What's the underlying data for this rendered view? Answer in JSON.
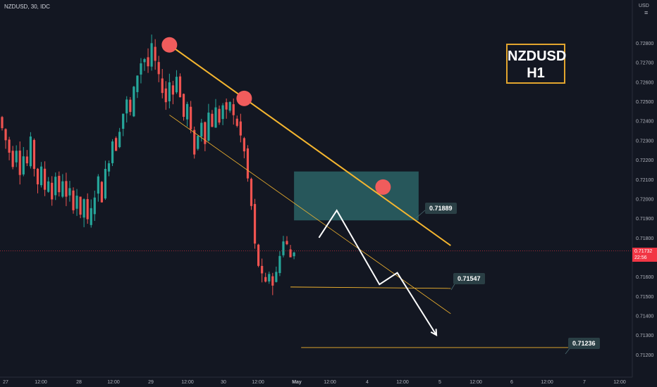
{
  "header": {
    "symbol_line": "NZDUSD, 30, IDC",
    "currency": "USD"
  },
  "ticker_box": {
    "line1": "NZDUSD",
    "line2": "H1"
  },
  "current_price": {
    "value": "0.71732",
    "countdown": "22:56"
  },
  "labels": {
    "zone_top": "0.71889",
    "support": "0.71547",
    "target": "0.71236"
  },
  "colors": {
    "background": "#131722",
    "bull": "#26a69a",
    "bear": "#ef5350",
    "trendline": "#f5b62f",
    "zone": "#2f6d6f",
    "touch_marker": "#f05c5c",
    "arrow": "#ffffff",
    "current_price": "#f23645"
  },
  "chart_data": {
    "type": "candlestick",
    "ylim": [
      0.712,
      0.729
    ],
    "y_ticks": [
      "0.72800",
      "0.72700",
      "0.72600",
      "0.72500",
      "0.72400",
      "0.72300",
      "0.72200",
      "0.72100",
      "0.72000",
      "0.71900",
      "0.71800",
      "0.71600",
      "0.71500",
      "0.71400",
      "0.71300",
      "0.71200"
    ],
    "x_ticks": [
      "27",
      "12:00",
      "28",
      "12:00",
      "29",
      "12:00",
      "30",
      "12:00",
      "May",
      "12:00",
      "4",
      "12:00",
      "5",
      "12:00",
      "6",
      "12:00",
      "7",
      "12:00"
    ],
    "price_path": [
      0.7242,
      0.7236,
      0.723,
      0.7224,
      0.7218,
      0.7226,
      0.7214,
      0.7222,
      0.7218,
      0.723,
      0.7216,
      0.7208,
      0.7215,
      0.7205,
      0.721,
      0.72,
      0.7212,
      0.7202,
      0.721,
      0.72,
      0.7204,
      0.7196,
      0.7202,
      0.719,
      0.72,
      0.7188,
      0.7194,
      0.7202,
      0.721,
      0.72,
      0.7214,
      0.722,
      0.723,
      0.7226,
      0.7236,
      0.7244,
      0.725,
      0.7244,
      0.7256,
      0.7264,
      0.727,
      0.7272,
      0.7268,
      0.7278,
      0.727,
      0.7262,
      0.7256,
      0.725,
      0.726,
      0.7254,
      0.7264,
      0.7252,
      0.7242,
      0.7248,
      0.7234,
      0.7224,
      0.7232,
      0.724,
      0.723,
      0.7244,
      0.7238,
      0.7246,
      0.724,
      0.7248,
      0.7244,
      0.725,
      0.7242,
      0.7238,
      0.7232,
      0.7224,
      0.721,
      0.7196,
      0.7176,
      0.7166,
      0.716,
      0.7156,
      0.7162,
      0.7156,
      0.7162,
      0.7172,
      0.7178,
      0.7176,
      0.717,
      0.7174
    ],
    "touch_points": [
      {
        "date_index": 47,
        "price": 0.7279
      },
      {
        "date_index": 68,
        "price": 0.72515
      },
      {
        "date_index": 107,
        "price": 0.7206
      }
    ],
    "resistance_line": {
      "from": [
        47,
        0.7279
      ],
      "to": [
        126,
        0.7176
      ]
    },
    "channel_line": {
      "from": [
        47,
        0.7243
      ],
      "to": [
        126,
        0.7141
      ]
    },
    "supply_zone": {
      "from_index": 82,
      "to_index": 117,
      "top": 0.7214,
      "bottom": 0.71889
    },
    "support_level": 0.71547,
    "target_level": 0.71236,
    "projection_path": [
      [
        89,
        0.718
      ],
      [
        94,
        0.7194
      ],
      [
        106,
        0.7156
      ],
      [
        111,
        0.7162
      ],
      [
        122,
        0.713
      ]
    ]
  }
}
